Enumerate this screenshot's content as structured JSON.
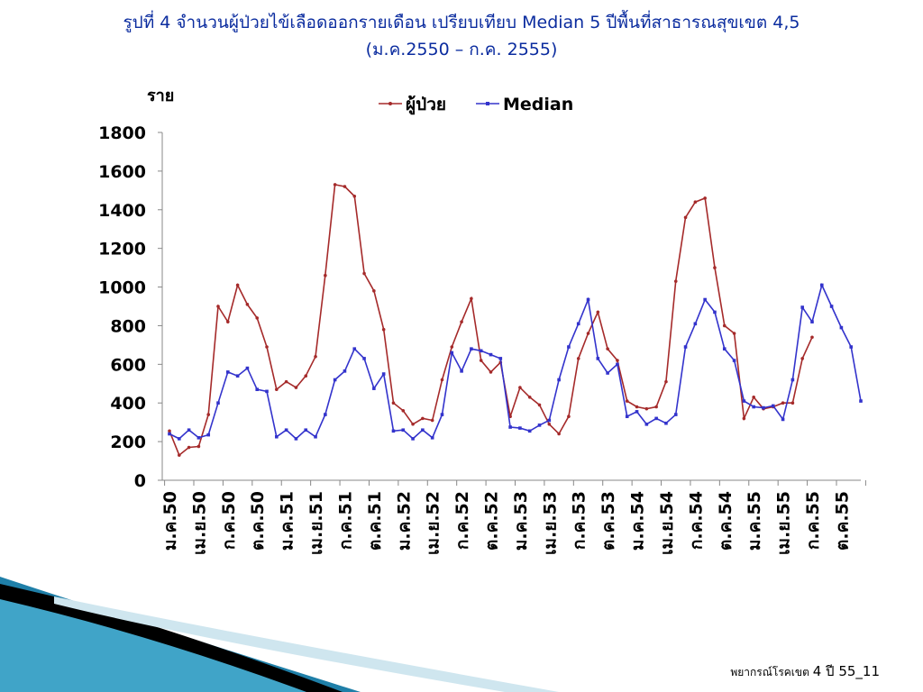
{
  "title": {
    "line1": "รูปที่ 4 จำนวนผู้ป่วยไข้เลือดออกรายเดือน เปรียบเทียบ Median 5 ปีพื้นที่สาธารณสุขเขต 4,5",
    "line2": "(ม.ค.2550 – ก.ค. 2555)"
  },
  "footer": {
    "prefix": "พยากรณ์โรคเขต",
    "suffix": "4 ปี 55_11"
  },
  "colors": {
    "patients": "#a52a2a",
    "median": "#3333cc",
    "title": "#0b2c9f"
  },
  "chart_data": {
    "type": "line",
    "ylabel": "ราย",
    "ylim": [
      0,
      1800
    ],
    "yticks": [
      0,
      200,
      400,
      600,
      800,
      1000,
      1200,
      1400,
      1600,
      1800
    ],
    "xtick_labels": [
      "ม.ค.50",
      "เม.ย.50",
      "ก.ค.50",
      "ต.ค.50",
      "ม.ค.51",
      "เม.ย.51",
      "ก.ค.51",
      "ต.ค.51",
      "ม.ค.52",
      "เม.ย.52",
      "ก.ค.52",
      "ต.ค.52",
      "ม.ค.53",
      "เม.ย.53",
      "ก.ค.53",
      "ต.ค.53",
      "ม.ค.54",
      "เม.ย.54",
      "ก.ค.54",
      "ต.ค.54",
      "ม.ค.55",
      "เม.ย.55",
      "ก.ค.55",
      "ต.ค.55"
    ],
    "x_count": 72,
    "legend_position": "top",
    "series": [
      {
        "name": "ผู้ป่วย",
        "color": "#a52a2a",
        "values": [
          255,
          130,
          170,
          175,
          340,
          900,
          820,
          1010,
          910,
          840,
          690,
          470,
          510,
          480,
          540,
          640,
          1060,
          1530,
          1520,
          1470,
          1070,
          980,
          780,
          400,
          360,
          290,
          320,
          310,
          520,
          690,
          820,
          940,
          620,
          560,
          610,
          330,
          480,
          430,
          390,
          290,
          240,
          330,
          630,
          760,
          870,
          680,
          620,
          410,
          380,
          370,
          380,
          510,
          1030,
          1360,
          1440,
          1460,
          1100,
          800,
          760,
          320,
          430,
          370,
          380,
          400,
          400,
          630,
          740
        ]
      },
      {
        "name": "Median",
        "color": "#3333cc",
        "values": [
          240,
          215,
          260,
          220,
          235,
          400,
          560,
          540,
          580,
          470,
          460,
          225,
          260,
          215,
          260,
          225,
          340,
          520,
          565,
          680,
          630,
          475,
          550,
          255,
          260,
          215,
          260,
          220,
          340,
          660,
          565,
          680,
          670,
          650,
          630,
          275,
          270,
          255,
          285,
          310,
          520,
          690,
          810,
          935,
          630,
          555,
          600,
          330,
          355,
          290,
          320,
          295,
          340,
          690,
          810,
          935,
          870,
          680,
          620,
          410,
          380,
          375,
          385,
          315,
          520,
          895,
          820,
          1010,
          900,
          790,
          690,
          410
        ]
      }
    ]
  }
}
